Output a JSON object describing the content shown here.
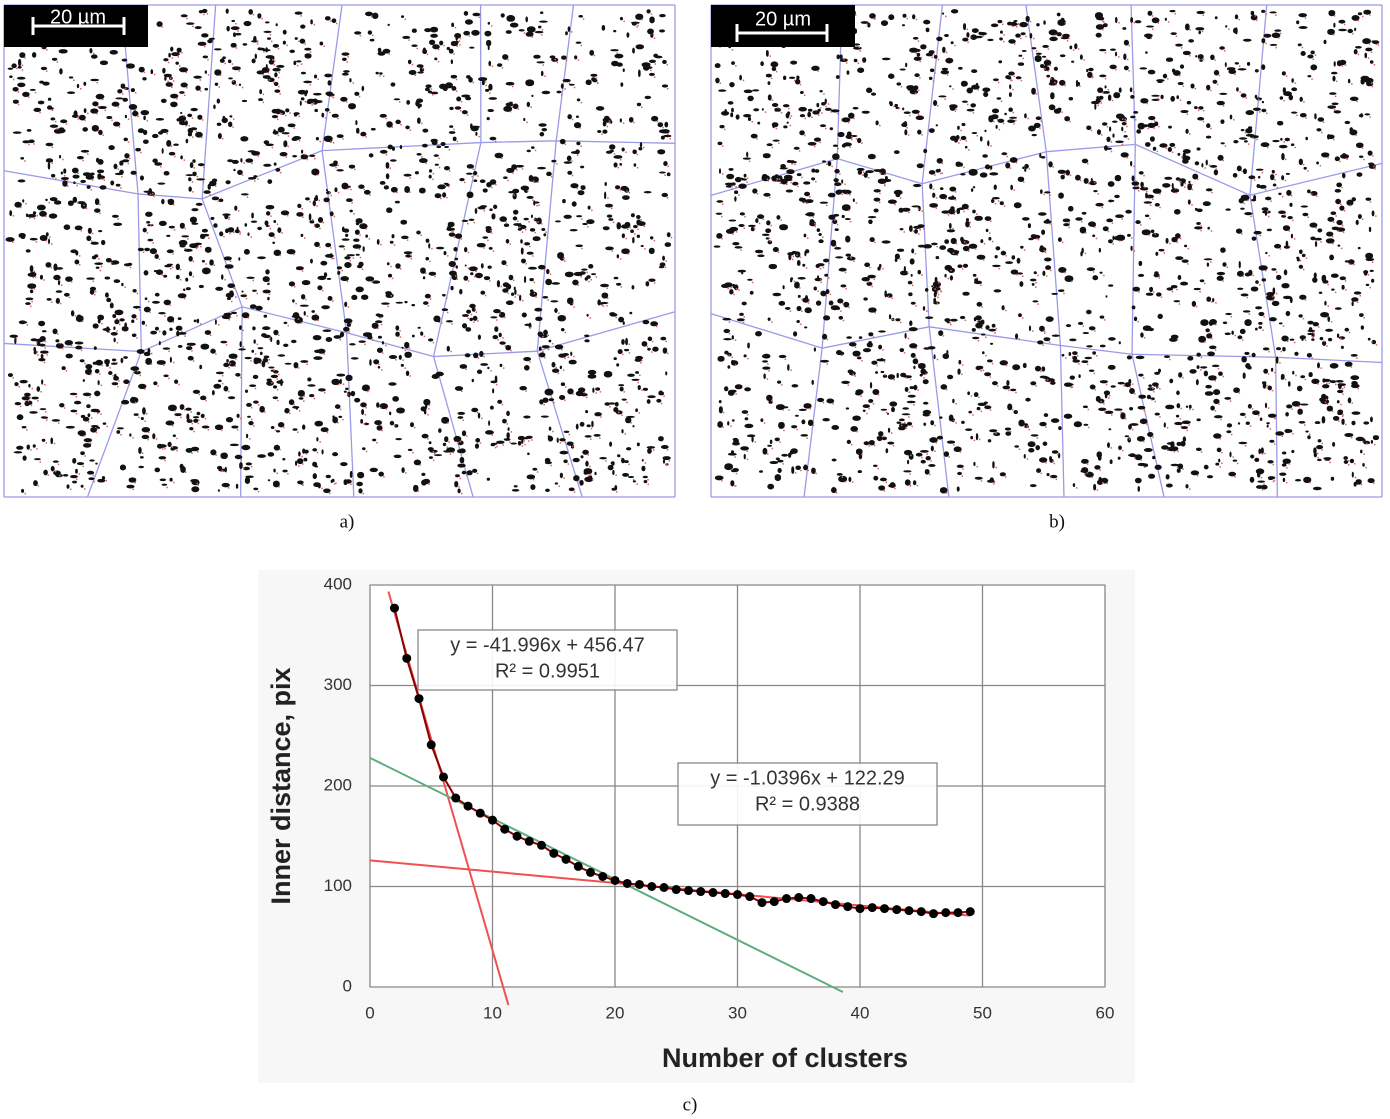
{
  "figure": {
    "panels": [
      {
        "scale_bar": "20 µm",
        "caption": "a)"
      },
      {
        "scale_bar": "20 µm",
        "caption": "b)"
      }
    ],
    "caption": "c)"
  },
  "chart_data": {
    "type": "scatter",
    "x_label": "Number of clusters",
    "y_label": "Inner distance, pix",
    "x": [
      2,
      3,
      4,
      5,
      6,
      7,
      8,
      9,
      10,
      11,
      12,
      13,
      14,
      15,
      16,
      17,
      18,
      19,
      20,
      21,
      22,
      23,
      24,
      25,
      26,
      27,
      28,
      29,
      30,
      31,
      32,
      33,
      34,
      35,
      36,
      37,
      38,
      39,
      40,
      41,
      42,
      43,
      44,
      45,
      46,
      47,
      48,
      49
    ],
    "series": [
      {
        "color": "#000000",
        "line_color": "#8b0000",
        "values": [
          377,
          327,
          287,
          241,
          209,
          188,
          180,
          173,
          166,
          157,
          150,
          145,
          141,
          133,
          127,
          120,
          114,
          110,
          106,
          103,
          102,
          100,
          99,
          97,
          96,
          95,
          94,
          93,
          92,
          90,
          84,
          85,
          88,
          89,
          88,
          85,
          82,
          80,
          78,
          79,
          78,
          77,
          76,
          75,
          73,
          74,
          74,
          75
        ]
      }
    ],
    "trendlines": [
      {
        "color": "#f05050",
        "x": [
          1.5,
          11.3
        ],
        "y": [
          393.5,
          -18
        ]
      },
      {
        "color": "#5cae7c",
        "x": [
          0,
          38.6
        ],
        "y": [
          228,
          -5
        ]
      },
      {
        "color": "#f05050",
        "x": [
          0,
          49
        ],
        "y": [
          126,
          71
        ]
      }
    ],
    "annotations": [
      {
        "lines": [
          "y = -41.996x + 456.47",
          "R² = 0.9951"
        ]
      },
      {
        "lines": [
          "y = -1.0396x + 122.29",
          "R² = 0.9388"
        ]
      }
    ],
    "xlim": [
      0,
      60
    ],
    "ylim": [
      0,
      400
    ],
    "xticks": [
      0,
      10,
      20,
      30,
      40,
      50,
      60
    ],
    "yticks": [
      0,
      100,
      200,
      300,
      400
    ],
    "grid": true
  }
}
